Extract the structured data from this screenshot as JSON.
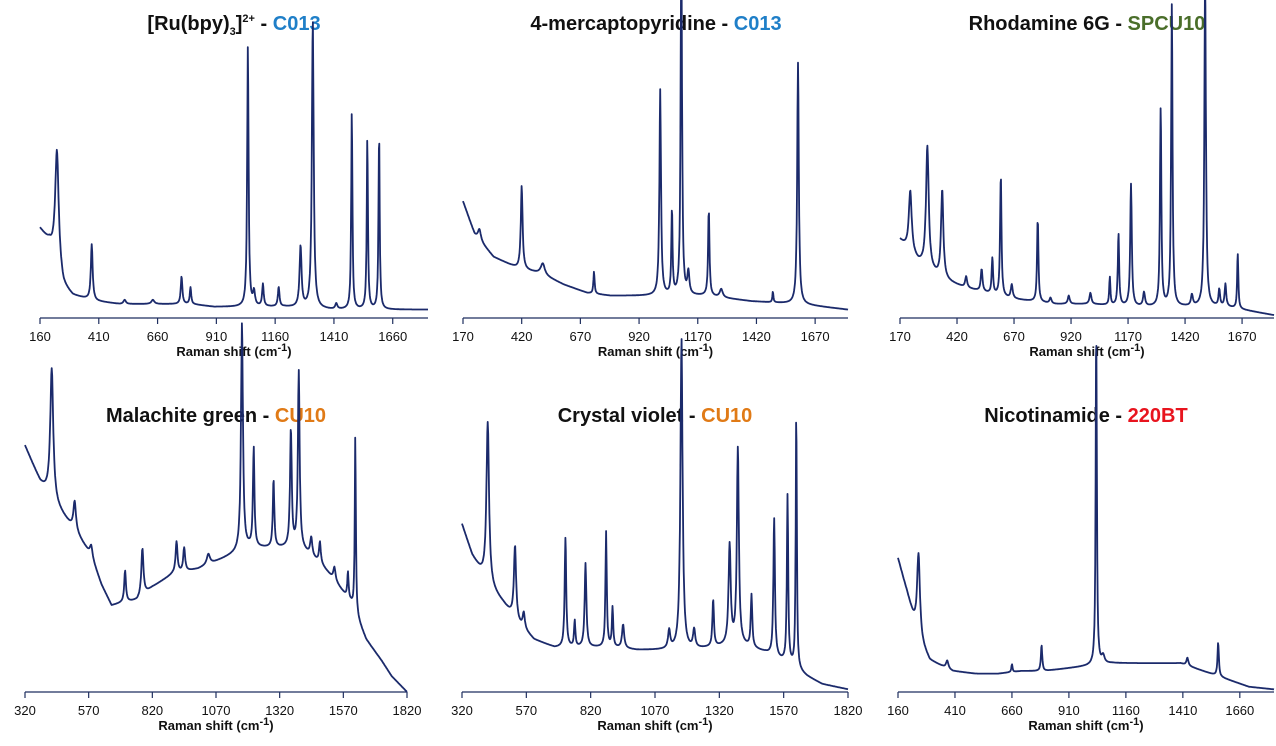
{
  "colors": {
    "line": "#1b2a6b",
    "axis": "#1f2f5f",
    "text": "#111111"
  },
  "chart_data": [
    {
      "type": "line",
      "title": "[Ru(bpy)3]2+ - C013",
      "title_parts": {
        "compound": "[Ru(bpy)",
        "sub": "3",
        "post": "]",
        "sup": "2+",
        "sep": " - ",
        "substrate": "C013"
      },
      "substrate_color": "#1f7fc8",
      "xlabel": "Raman shift (cm",
      "xlabel_sup": "-1",
      "xlabel_end": ")",
      "xlim": [
        160,
        1810
      ],
      "xticks": [
        160,
        410,
        660,
        910,
        1160,
        1410,
        1660
      ],
      "ylim": [
        0,
        100
      ],
      "baseline": [
        [
          160,
          32
        ],
        [
          200,
          27
        ],
        [
          260,
          11
        ],
        [
          300,
          8
        ],
        [
          400,
          6
        ],
        [
          500,
          5
        ],
        [
          600,
          5
        ],
        [
          700,
          5
        ],
        [
          800,
          5
        ],
        [
          900,
          4
        ],
        [
          1000,
          4
        ],
        [
          1200,
          4
        ],
        [
          1400,
          3
        ],
        [
          1600,
          3
        ],
        [
          1810,
          3
        ]
      ],
      "peaks": [
        [
          232,
          42,
          18
        ],
        [
          380,
          20,
          9
        ],
        [
          520,
          1.5,
          12
        ],
        [
          640,
          1.5,
          15
        ],
        [
          762,
          10,
          8
        ],
        [
          800,
          6,
          7
        ],
        [
          1044,
          94,
          7
        ],
        [
          1070,
          5,
          10
        ],
        [
          1108,
          8,
          8
        ],
        [
          1175,
          7,
          8
        ],
        [
          1268,
          22,
          10
        ],
        [
          1320,
          104,
          9
        ],
        [
          1420,
          2,
          10
        ],
        [
          1486,
          72,
          6
        ],
        [
          1552,
          62,
          6
        ],
        [
          1602,
          64,
          6
        ]
      ]
    },
    {
      "type": "line",
      "title": "4-mercaptopyridine - C013",
      "title_parts": {
        "compound": "4-mercaptopyridine",
        "sep": " - ",
        "substrate": "C013"
      },
      "substrate_color": "#1f7fc8",
      "xlabel": "Raman shift (cm",
      "xlabel_sup": "-1",
      "xlabel_end": ")",
      "xlim": [
        170,
        1810
      ],
      "xticks": [
        170,
        420,
        670,
        920,
        1170,
        1420,
        1670
      ],
      "ylim": [
        0,
        100
      ],
      "baseline": [
        [
          170,
          42
        ],
        [
          220,
          30
        ],
        [
          300,
          22
        ],
        [
          400,
          18
        ],
        [
          500,
          16
        ],
        [
          600,
          12
        ],
        [
          700,
          9
        ],
        [
          800,
          8
        ],
        [
          900,
          8
        ],
        [
          1000,
          8
        ],
        [
          1200,
          8
        ],
        [
          1400,
          6
        ],
        [
          1600,
          5
        ],
        [
          1810,
          3
        ]
      ],
      "peaks": [
        [
          240,
          4,
          15
        ],
        [
          420,
          30,
          9
        ],
        [
          510,
          4,
          20
        ],
        [
          728,
          8,
          6
        ],
        [
          1010,
          74,
          8
        ],
        [
          1060,
          31,
          6
        ],
        [
          1100,
          128,
          7
        ],
        [
          1130,
          8,
          10
        ],
        [
          1217,
          31,
          7
        ],
        [
          1270,
          3,
          15
        ],
        [
          1490,
          4,
          5
        ],
        [
          1597,
          87,
          8
        ]
      ]
    },
    {
      "type": "line",
      "title": "Rhodamine 6G - SPCU10",
      "title_parts": {
        "compound": "Rhodamine 6G",
        "sep": " - ",
        "substrate": "SPCU10"
      },
      "substrate_color": "#4a6e2a",
      "xlabel": "Raman shift (cm",
      "xlabel_sup": "-1",
      "xlabel_end": ")",
      "xlim": [
        170,
        1810
      ],
      "xticks": [
        170,
        420,
        670,
        920,
        1170,
        1420,
        1670
      ],
      "ylim": [
        0,
        100
      ],
      "baseline": [
        [
          170,
          28
        ],
        [
          250,
          20
        ],
        [
          350,
          14
        ],
        [
          450,
          11
        ],
        [
          550,
          9
        ],
        [
          650,
          7
        ],
        [
          750,
          6
        ],
        [
          850,
          5
        ],
        [
          1000,
          5
        ],
        [
          1200,
          4
        ],
        [
          1400,
          4
        ],
        [
          1600,
          4
        ],
        [
          1810,
          1
        ]
      ],
      "peaks": [
        [
          215,
          22,
          15
        ],
        [
          290,
          44,
          14
        ],
        [
          355,
          32,
          12
        ],
        [
          460,
          4,
          10
        ],
        [
          528,
          8,
          9
        ],
        [
          575,
          13,
          7
        ],
        [
          612,
          44,
          7
        ],
        [
          660,
          5,
          10
        ],
        [
          774,
          30,
          7
        ],
        [
          830,
          2,
          10
        ],
        [
          910,
          3,
          10
        ],
        [
          1005,
          4,
          10
        ],
        [
          1090,
          10,
          6
        ],
        [
          1128,
          26,
          7
        ],
        [
          1183,
          44,
          8
        ],
        [
          1240,
          5,
          10
        ],
        [
          1313,
          72,
          7
        ],
        [
          1362,
          109,
          7
        ],
        [
          1450,
          4,
          10
        ],
        [
          1508,
          120,
          8
        ],
        [
          1570,
          6,
          8
        ],
        [
          1597,
          8,
          8
        ],
        [
          1651,
          20,
          6
        ]
      ]
    },
    {
      "type": "line",
      "title": "Malachite green - CU10",
      "title_parts": {
        "compound": "Malachite green",
        "sep": " - ",
        "substrate": "CU10"
      },
      "substrate_color": "#e07a16",
      "xlabel": "Raman shift (cm",
      "xlabel_sup": "-1",
      "xlabel_end": ")",
      "xlim": [
        320,
        1820
      ],
      "xticks": [
        320,
        570,
        820,
        1070,
        1320,
        1570,
        1820
      ],
      "ylim": [
        0,
        100
      ],
      "baseline": [
        [
          320,
          94
        ],
        [
          380,
          80
        ],
        [
          450,
          70
        ],
        [
          520,
          61
        ],
        [
          580,
          52
        ],
        [
          620,
          41
        ],
        [
          660,
          33
        ],
        [
          700,
          34
        ],
        [
          760,
          35
        ],
        [
          820,
          40
        ],
        [
          900,
          45
        ],
        [
          1000,
          47
        ],
        [
          1100,
          51
        ],
        [
          1200,
          55
        ],
        [
          1300,
          55
        ],
        [
          1400,
          55
        ],
        [
          1480,
          49
        ],
        [
          1540,
          42
        ],
        [
          1600,
          34
        ],
        [
          1660,
          20
        ],
        [
          1720,
          12
        ],
        [
          1760,
          6
        ],
        [
          1800,
          2
        ],
        [
          1820,
          0
        ]
      ],
      "peaks": [
        [
          425,
          50,
          14
        ],
        [
          515,
          11,
          12
        ],
        [
          580,
          4,
          12
        ],
        [
          713,
          12,
          8
        ],
        [
          781,
          18,
          10
        ],
        [
          915,
          12,
          9
        ],
        [
          945,
          9,
          9
        ],
        [
          1040,
          4,
          15
        ],
        [
          1172,
          87,
          9
        ],
        [
          1218,
          38,
          7
        ],
        [
          1296,
          26,
          7
        ],
        [
          1364,
          45,
          8
        ],
        [
          1395,
          67,
          8
        ],
        [
          1444,
          7,
          10
        ],
        [
          1478,
          8,
          8
        ],
        [
          1535,
          5,
          10
        ],
        [
          1588,
          10,
          6
        ],
        [
          1617,
          68,
          5
        ]
      ]
    },
    {
      "type": "line",
      "title": "Crystal violet - CU10",
      "title_parts": {
        "compound": "Crystal violet",
        "sep": " - ",
        "substrate": "CU10"
      },
      "substrate_color": "#e07a16",
      "xlabel": "Raman shift (cm",
      "xlabel_sup": "-1",
      "xlabel_end": ")",
      "xlim": [
        320,
        1820
      ],
      "xticks": [
        320,
        570,
        820,
        1070,
        1320,
        1570,
        1820
      ],
      "ylim": [
        0,
        100
      ],
      "baseline": [
        [
          320,
          64
        ],
        [
          360,
          52
        ],
        [
          420,
          41
        ],
        [
          480,
          34
        ],
        [
          540,
          26
        ],
        [
          600,
          20
        ],
        [
          680,
          17
        ],
        [
          800,
          17
        ],
        [
          900,
          17
        ],
        [
          1000,
          16
        ],
        [
          1100,
          16
        ],
        [
          1200,
          16
        ],
        [
          1300,
          17
        ],
        [
          1400,
          18
        ],
        [
          1500,
          15
        ],
        [
          1600,
          10
        ],
        [
          1660,
          6
        ],
        [
          1720,
          3
        ],
        [
          1820,
          1
        ]
      ],
      "peaks": [
        [
          420,
          62,
          12
        ],
        [
          526,
          28,
          10
        ],
        [
          560,
          6,
          10
        ],
        [
          722,
          42,
          7
        ],
        [
          758,
          10,
          6
        ],
        [
          800,
          32,
          8
        ],
        [
          880,
          44,
          6
        ],
        [
          905,
          15,
          6
        ],
        [
          946,
          9,
          10
        ],
        [
          1125,
          7,
          10
        ],
        [
          1173,
          119,
          10
        ],
        [
          1222,
          7,
          10
        ],
        [
          1296,
          18,
          7
        ],
        [
          1360,
          38,
          10
        ],
        [
          1392,
          75,
          9
        ],
        [
          1445,
          20,
          7
        ],
        [
          1533,
          53,
          7
        ],
        [
          1585,
          64,
          6
        ],
        [
          1619,
          100,
          5
        ]
      ]
    },
    {
      "type": "line",
      "title": "Nicotinamide - 220BT",
      "title_parts": {
        "compound": "Nicotinamide",
        "sep": " - ",
        "substrate": "220BT"
      },
      "substrate_color": "#e8141e",
      "xlabel": "Raman shift (cm",
      "xlabel_sup": "-1",
      "xlabel_end": ")",
      "xlim": [
        160,
        1810
      ],
      "xticks": [
        160,
        410,
        660,
        910,
        1160,
        1410,
        1660
      ],
      "ylim": [
        0,
        100
      ],
      "baseline": [
        [
          160,
          51
        ],
        [
          200,
          38
        ],
        [
          250,
          20
        ],
        [
          300,
          12
        ],
        [
          400,
          8
        ],
        [
          500,
          7
        ],
        [
          600,
          7
        ],
        [
          700,
          8
        ],
        [
          800,
          8
        ],
        [
          900,
          9
        ],
        [
          1000,
          10
        ],
        [
          1100,
          11
        ],
        [
          1200,
          11
        ],
        [
          1300,
          11
        ],
        [
          1400,
          11
        ],
        [
          1500,
          8
        ],
        [
          1600,
          5
        ],
        [
          1700,
          2
        ],
        [
          1810,
          1
        ]
      ],
      "peaks": [
        [
          250,
          33,
          15
        ],
        [
          376,
          3,
          12
        ],
        [
          660,
          3,
          6
        ],
        [
          790,
          10,
          7
        ],
        [
          1030,
          131,
          6
        ],
        [
          1060,
          3,
          15
        ],
        [
          1430,
          3,
          10
        ],
        [
          1565,
          13,
          7
        ]
      ]
    }
  ]
}
